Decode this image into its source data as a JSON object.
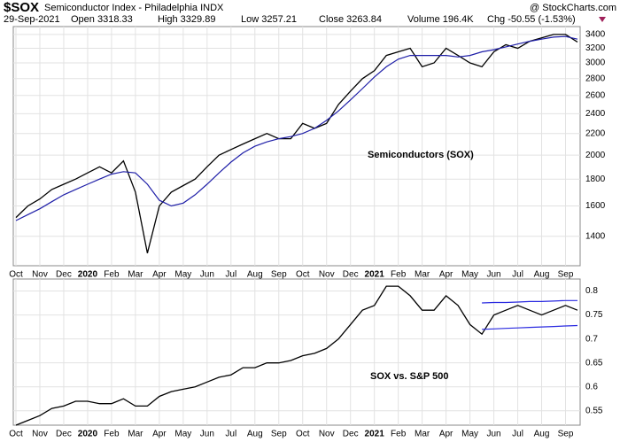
{
  "header": {
    "symbol": "$SOX",
    "name": "Semiconductor Index - Philadelphia INDX",
    "date": "29-Sep-2021",
    "open": "Open 3318.33",
    "high": "High 3329.89",
    "low": "Low 3257.21",
    "close": "Close 3263.84",
    "volume": "Volume 196.4K",
    "change": "Chg -50.55 (-1.53%)",
    "source": "@ StockCharts.com"
  },
  "chart_data": [
    {
      "type": "line",
      "label": "Semiconductors (SOX)",
      "log_scale": true,
      "grid": true,
      "categories": [
        "Oct",
        null,
        "Nov",
        null,
        "Dec",
        null,
        "2020",
        null,
        "Feb",
        null,
        "Mar",
        null,
        "Apr",
        null,
        "May",
        null,
        "Jun",
        null,
        "Jul",
        null,
        "Aug",
        null,
        "Sep",
        null,
        "Oct",
        null,
        "Nov",
        null,
        "Dec",
        null,
        "2021",
        null,
        "Feb",
        null,
        "Mar",
        null,
        "Apr",
        null,
        "May",
        null,
        "Jun",
        null,
        "Jul",
        null,
        "Aug",
        null,
        "Sep",
        null
      ],
      "ylim": [
        1230,
        3520
      ],
      "yticks": [
        1400,
        1600,
        1800,
        2000,
        2200,
        2400,
        2600,
        2800,
        3000,
        3200,
        3400
      ],
      "series": [
        {
          "color": "#000000",
          "values": [
            1520,
            1600,
            1650,
            1720,
            1760,
            1800,
            1850,
            1900,
            1850,
            1950,
            1700,
            1300,
            1600,
            1700,
            1750,
            1800,
            1900,
            2000,
            2050,
            2100,
            2150,
            2200,
            2150,
            2150,
            2300,
            2250,
            2300,
            2500,
            2650,
            2800,
            2900,
            3100,
            3150,
            3200,
            2950,
            3000,
            3200,
            3100,
            3000,
            2950,
            3150,
            3250,
            3200,
            3300,
            3350,
            3400,
            3400,
            3290
          ]
        },
        {
          "color": "#1f1fa8",
          "values": [
            1500,
            1540,
            1580,
            1630,
            1680,
            1720,
            1760,
            1800,
            1840,
            1860,
            1850,
            1760,
            1640,
            1600,
            1620,
            1680,
            1760,
            1850,
            1940,
            2020,
            2080,
            2120,
            2150,
            2170,
            2200,
            2250,
            2330,
            2430,
            2550,
            2680,
            2820,
            2950,
            3050,
            3100,
            3100,
            3100,
            3100,
            3080,
            3100,
            3150,
            3180,
            3220,
            3260,
            3300,
            3330,
            3360,
            3370,
            3330
          ]
        }
      ]
    },
    {
      "type": "line",
      "label": "SOX vs. S&P 500",
      "log_scale": false,
      "grid": true,
      "categories": [
        "Oct",
        null,
        "Nov",
        null,
        "Dec",
        null,
        "2020",
        null,
        "Feb",
        null,
        "Mar",
        null,
        "Apr",
        null,
        "May",
        null,
        "Jun",
        null,
        "Jul",
        null,
        "Aug",
        null,
        "Sep",
        null,
        "Oct",
        null,
        "Nov",
        null,
        "Dec",
        null,
        "2021",
        null,
        "Feb",
        null,
        "Mar",
        null,
        "Apr",
        null,
        "May",
        null,
        "Jun",
        null,
        "Jul",
        null,
        "Aug",
        null,
        "Sep",
        null
      ],
      "ylim": [
        0.52,
        0.825
      ],
      "yticks": [
        0.55,
        0.6,
        0.65,
        0.7,
        0.75,
        0.8
      ],
      "series": [
        {
          "color": "#000000",
          "values": [
            0.52,
            0.53,
            0.54,
            0.555,
            0.56,
            0.57,
            0.57,
            0.565,
            0.565,
            0.575,
            0.56,
            0.56,
            0.58,
            0.59,
            0.595,
            0.6,
            0.61,
            0.62,
            0.625,
            0.64,
            0.64,
            0.65,
            0.65,
            0.655,
            0.665,
            0.67,
            0.68,
            0.7,
            0.73,
            0.76,
            0.77,
            0.81,
            0.81,
            0.79,
            0.76,
            0.76,
            0.79,
            0.77,
            0.73,
            0.71,
            0.75,
            0.76,
            0.77,
            0.76,
            0.75,
            0.76,
            0.77,
            0.76
          ]
        },
        {
          "color": "#2a2ae0",
          "values": [
            null,
            null,
            null,
            null,
            null,
            null,
            null,
            null,
            null,
            null,
            null,
            null,
            null,
            null,
            null,
            null,
            null,
            null,
            null,
            null,
            null,
            null,
            null,
            null,
            null,
            null,
            null,
            null,
            null,
            null,
            null,
            null,
            null,
            null,
            null,
            null,
            null,
            null,
            null,
            0.775,
            0.776,
            0.776,
            0.777,
            0.778,
            0.778,
            0.779,
            0.78,
            0.78
          ]
        },
        {
          "color": "#2a2ae0",
          "values": [
            null,
            null,
            null,
            null,
            null,
            null,
            null,
            null,
            null,
            null,
            null,
            null,
            null,
            null,
            null,
            null,
            null,
            null,
            null,
            null,
            null,
            null,
            null,
            null,
            null,
            null,
            null,
            null,
            null,
            null,
            null,
            null,
            null,
            null,
            null,
            null,
            null,
            null,
            null,
            0.72,
            0.721,
            0.722,
            0.723,
            0.724,
            0.725,
            0.726,
            0.727,
            0.728
          ]
        }
      ]
    }
  ]
}
